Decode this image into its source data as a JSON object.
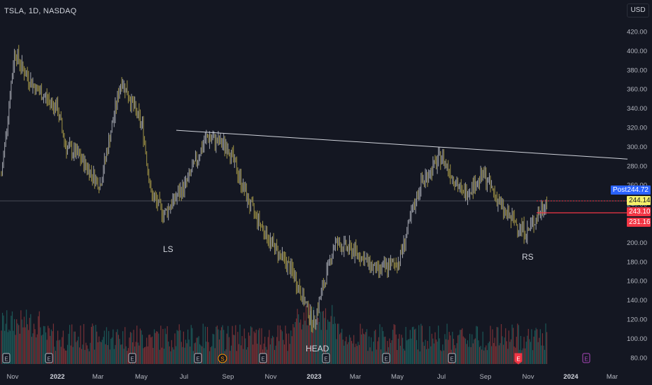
{
  "header": {
    "symbol": "TSLA, 1D, NASDAQ",
    "currency_button": "USD"
  },
  "colors": {
    "background": "#141722",
    "candle_a": "#b2a34a",
    "candle_b": "#b2b5be",
    "vol_up": "#26a69a",
    "vol_down": "#ef5350",
    "line": "#d1d4dc",
    "red_level": "#f23645",
    "last_price": "#f5f06a"
  },
  "price_tags": {
    "post": "Post",
    "post_value": "244.72",
    "last": "244.14",
    "level1": "243.10",
    "level2": "231.16"
  },
  "annotations": {
    "ls": "LS",
    "head": "HEAD",
    "rs": "RS"
  },
  "event_markers": [
    {
      "label": "E",
      "kind": "earnings",
      "x": "Oct 2021"
    },
    {
      "label": "E",
      "kind": "earnings",
      "x": "Jan 2022"
    },
    {
      "label": "E",
      "kind": "earnings",
      "x": "Apr 2022"
    },
    {
      "label": "E",
      "kind": "earnings",
      "x": "Jul 2022"
    },
    {
      "label": "S",
      "kind": "split",
      "x": "Aug 2022"
    },
    {
      "label": "E",
      "kind": "earnings",
      "x": "Oct 2022"
    },
    {
      "label": "E",
      "kind": "earnings",
      "x": "Jan 2023"
    },
    {
      "label": "E",
      "kind": "earnings",
      "x": "Apr 2023"
    },
    {
      "label": "E",
      "kind": "earnings",
      "x": "Jul 2023"
    },
    {
      "label": "E",
      "kind": "earnings",
      "x": "Oct 2023"
    },
    {
      "label": "E",
      "kind": "earnings",
      "x": "Jan 2024"
    }
  ],
  "chart_data": {
    "type": "line",
    "xlabel": "",
    "ylabel": "",
    "ylim": [
      70,
      440
    ],
    "y_ticks": [
      "420.00",
      "400.00",
      "380.00",
      "360.00",
      "340.00",
      "320.00",
      "300.00",
      "280.00",
      "260.00",
      "240.00",
      "220.00",
      "200.00",
      "180.00",
      "160.00",
      "140.00",
      "120.00",
      "100.00",
      "80.00"
    ],
    "x_ticks": [
      "Nov",
      "2022",
      "Mar",
      "May",
      "Jul",
      "Sep",
      "Nov",
      "2023",
      "Mar",
      "May",
      "Jul",
      "Sep",
      "Nov",
      "2024",
      "Mar"
    ],
    "grid": false,
    "series": [
      {
        "values_x": [
          "Oct 2021",
          "Nov 2021",
          "Nov 2021",
          "Dec 2021",
          "Jan 2022",
          "Jan 2022",
          "Feb 2022",
          "Mar 2022",
          "Apr 2022",
          "May 2022",
          "May 2022",
          "Jun 2022",
          "Jul 2022",
          "Aug 2022",
          "Sep 2022",
          "Oct 2022",
          "Nov 2022",
          "Dec 2022",
          "Jan 2023",
          "Feb 2023",
          "Mar 2023",
          "Apr 2023",
          "May 2023",
          "Jun 2023",
          "Jul 2023",
          "Aug 2023",
          "Sep 2023",
          "Oct 2023",
          "Nov 2023",
          "Nov 2023"
        ],
        "values": [
          270,
          400,
          380,
          360,
          340,
          300,
          290,
          260,
          370,
          320,
          250,
          230,
          260,
          310,
          300,
          240,
          200,
          170,
          115,
          200,
          190,
          170,
          180,
          260,
          290,
          250,
          270,
          230,
          210,
          245
        ]
      }
    ],
    "lines": [
      {
        "name": "",
        "from": {
          "x": "Jun 2022",
          "y": 317
        },
        "to": {
          "x": "Jan 2024",
          "y": 287
        }
      }
    ],
    "levels": [
      {
        "name": "",
        "y": 244.14,
        "style": "last"
      },
      {
        "name": "",
        "y": 243.1,
        "style": "red"
      },
      {
        "name": "",
        "y": 231.16,
        "style": "red"
      }
    ]
  }
}
